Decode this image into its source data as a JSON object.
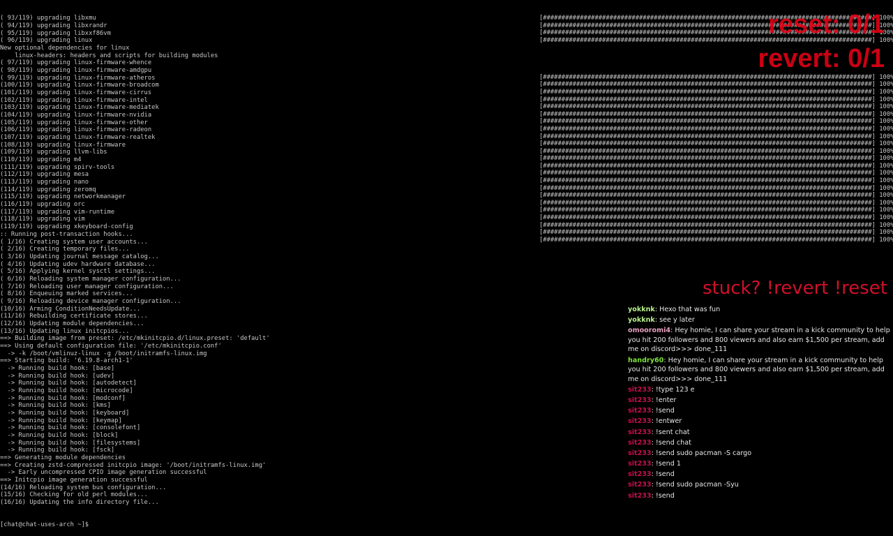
{
  "terminal": {
    "lines": [
      "( 93/119) upgrading libxmu",
      "( 94/119) upgrading libxrandr",
      "( 95/119) upgrading libxxf86vm",
      "( 96/119) upgrading linux",
      "New optional dependencies for linux",
      "    linux-headers: headers and scripts for building modules",
      "( 97/119) upgrading linux-firmware-whence",
      "( 98/119) upgrading linux-firmware-amdgpu",
      "( 99/119) upgrading linux-firmware-atheros",
      "(100/119) upgrading linux-firmware-broadcom",
      "(101/119) upgrading linux-firmware-cirrus",
      "(102/119) upgrading linux-firmware-intel",
      "(103/119) upgrading linux-firmware-mediatek",
      "(104/119) upgrading linux-firmware-nvidia",
      "(105/119) upgrading linux-firmware-other",
      "(106/119) upgrading linux-firmware-radeon",
      "(107/119) upgrading linux-firmware-realtek",
      "(108/119) upgrading linux-firmware",
      "(109/119) upgrading llvm-libs",
      "(110/119) upgrading m4",
      "(111/119) upgrading spirv-tools",
      "(112/119) upgrading mesa",
      "(113/119) upgrading nano",
      "(114/119) upgrading zeromq",
      "(115/119) upgrading networkmanager",
      "(116/119) upgrading orc",
      "(117/119) upgrading vim-runtime",
      "(118/119) upgrading vim",
      "(119/119) upgrading xkeyboard-config",
      ":: Running post-transaction hooks...",
      "( 1/16) Creating system user accounts...",
      "( 2/16) Creating temporary files...",
      "( 3/16) Updating journal message catalog...",
      "( 4/16) Updating udev hardware database...",
      "( 5/16) Applying kernel sysctl settings...",
      "( 6/16) Reloading system manager configuration...",
      "( 7/16) Reloading user manager configuration...",
      "( 8/16) Enqueuing marked services...",
      "( 9/16) Reloading device manager configuration...",
      "(10/16) Arming ConditionNeedsUpdate...",
      "(11/16) Rebuilding certificate stores...",
      "(12/16) Updating module dependencies...",
      "(13/16) Updating linux initcpios...",
      "==> Building image from preset: /etc/mkinitcpio.d/linux.preset: 'default'",
      "==> Using default configuration file: '/etc/mkinitcpio.conf'",
      "  -> -k /boot/vmlinuz-linux -g /boot/initramfs-linux.img",
      "==> Starting build: '6.19.8-arch1-1'",
      "  -> Running build hook: [base]",
      "  -> Running build hook: [udev]",
      "  -> Running build hook: [autodetect]",
      "  -> Running build hook: [microcode]",
      "  -> Running build hook: [modconf]",
      "  -> Running build hook: [kms]",
      "  -> Running build hook: [keyboard]",
      "  -> Running build hook: [keymap]",
      "  -> Running build hook: [consolefont]",
      "  -> Running build hook: [block]",
      "  -> Running build hook: [filesystems]",
      "  -> Running build hook: [fsck]",
      "==> Generating module dependencies",
      "==> Creating zstd-compressed initcpio image: '/boot/initramfs-linux.img'",
      "  -> Early uncompressed CPIO image generation successful",
      "==> Initcpio image generation successful",
      "(14/16) Reloading system bus configuration...",
      "(15/16) Checking for old perl modules...",
      "(16/16) Updating the info directory file..."
    ],
    "prompt": "[chat@chat-uses-arch ~]$"
  },
  "progress": {
    "group1": [
      100,
      100,
      100,
      100
    ],
    "group2": [
      100,
      100,
      100,
      100,
      100,
      100,
      100,
      100,
      100,
      100,
      100,
      100,
      100,
      100,
      100,
      100,
      100,
      100,
      100,
      100,
      100,
      100,
      100
    ]
  },
  "overlay": {
    "reset": "reset: 0/1",
    "revert": "revert: 0/1",
    "stuck": "stuck? !revert !reset",
    "color": "#e60014"
  },
  "chat": {
    "messages": [
      {
        "user": "yokknk",
        "color": "#b6f08a",
        "text": "Hexo that was fun"
      },
      {
        "user": "yokknk",
        "color": "#b6f08a",
        "text": "see y later"
      },
      {
        "user": "omooromi4",
        "color": "#e7a0c0",
        "text": "Hey homie, I can share your stream in a kick community to help you hit 200 followers and 800 viewers and also earn $1,500 per stream, add me on discord>>> done_111"
      },
      {
        "user": "handry60",
        "color": "#7ee03a",
        "text": "Hey homie, I can share your stream in a kick community to help you hit 200 followers and 800 viewers and also earn $1,500 per stream, add me on discord>>> done_111"
      },
      {
        "user": "sit233",
        "color": "#c4104a",
        "text": "!type 123 e"
      },
      {
        "user": "sit233",
        "color": "#c4104a",
        "text": "!enter"
      },
      {
        "user": "sit233",
        "color": "#c4104a",
        "text": "!send"
      },
      {
        "user": "sit233",
        "color": "#c4104a",
        "text": "!entwer"
      },
      {
        "user": "sit233",
        "color": "#c4104a",
        "text": "!sent chat"
      },
      {
        "user": "sit233",
        "color": "#c4104a",
        "text": "!send chat"
      },
      {
        "user": "sit233",
        "color": "#c4104a",
        "text": "!send sudo pacman -S cargo"
      },
      {
        "user": "sit233",
        "color": "#c4104a",
        "text": "!send 1"
      },
      {
        "user": "sit233",
        "color": "#c4104a",
        "text": "!send"
      },
      {
        "user": "sit233",
        "color": "#c4104a",
        "text": "!send sudo pacman -Syu"
      },
      {
        "user": "sit233",
        "color": "#c4104a",
        "text": "!send"
      }
    ]
  }
}
